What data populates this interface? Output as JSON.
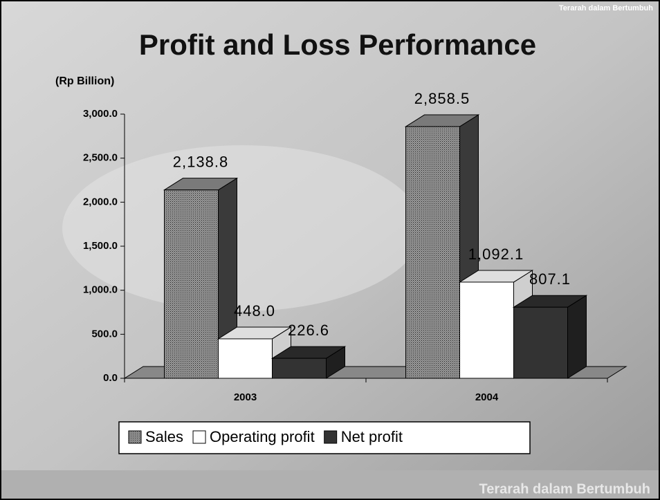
{
  "header": {
    "tagline": "Terarah dalam Bertumbuh"
  },
  "footer": {
    "tagline": "Terarah dalam Bertumbuh"
  },
  "chart_data": {
    "type": "bar3d",
    "title": "Profit and Loss Performance",
    "y_label": "(Rp Billion)",
    "categories": [
      "2003",
      "2004"
    ],
    "series": [
      {
        "name": "Sales",
        "color": "#8a8a8a",
        "values": [
          2138.8,
          2858.5
        ],
        "value_labels": [
          "2,138.8",
          "2,858.5"
        ]
      },
      {
        "name": "Operating profit",
        "color": "#ffffff",
        "values": [
          448.0,
          1092.1
        ],
        "value_labels": [
          "448.0",
          "1,092.1"
        ]
      },
      {
        "name": "Net profit",
        "color": "#333333",
        "values": [
          226.6,
          807.1
        ],
        "value_labels": [
          "226.6",
          "807.1"
        ]
      }
    ],
    "ylim": [
      0,
      3000
    ],
    "yticks": [
      {
        "value": 0,
        "label": "0.0"
      },
      {
        "value": 500,
        "label": "500.0"
      },
      {
        "value": 1000,
        "label": "1,000.0"
      },
      {
        "value": 1500,
        "label": "1,500.0"
      },
      {
        "value": 2000,
        "label": "2,000.0"
      },
      {
        "value": 2500,
        "label": "2,500.0"
      },
      {
        "value": 3000,
        "label": "3,000.0"
      }
    ],
    "legend": "bottom"
  }
}
